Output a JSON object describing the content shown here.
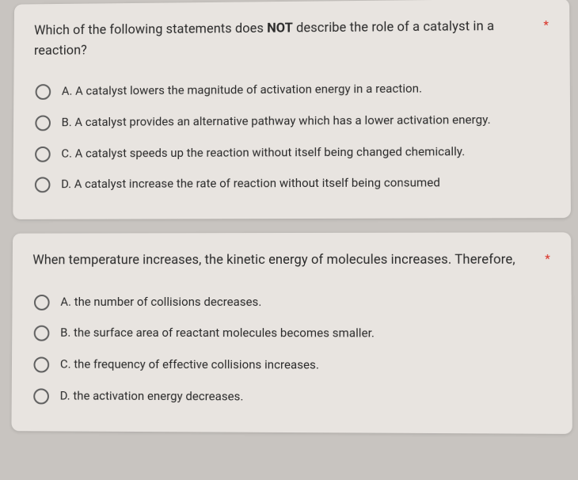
{
  "questions": [
    {
      "text_pre": "Which of the following statements does ",
      "text_bold": "NOT",
      "text_post": " describe the role of a catalyst in a reaction?",
      "required": "*",
      "options": [
        "A. A catalyst lowers the magnitude of activation energy in a reaction.",
        "B. A catalyst provides an alternative pathway which has a lower activation energy.",
        "C. A catalyst speeds up the reaction without itself being changed chemically.",
        "D. A catalyst increase the rate of reaction without itself being consumed"
      ]
    },
    {
      "text_pre": "When temperature increases, the kinetic energy of molecules increases. Therefore,",
      "text_bold": "",
      "text_post": "",
      "required": "*",
      "options": [
        "A. the number of collisions decreases.",
        "B. the surface area of reactant molecules becomes smaller.",
        "C. the frequency of effective collisions increases.",
        "D. the activation energy decreases."
      ]
    }
  ],
  "colors": {
    "card_bg": "#e8e4e0",
    "page_bg": "#c8c4c0",
    "text": "#2a2a2a",
    "radio_border": "#5f5f5f",
    "required": "#d93025"
  }
}
